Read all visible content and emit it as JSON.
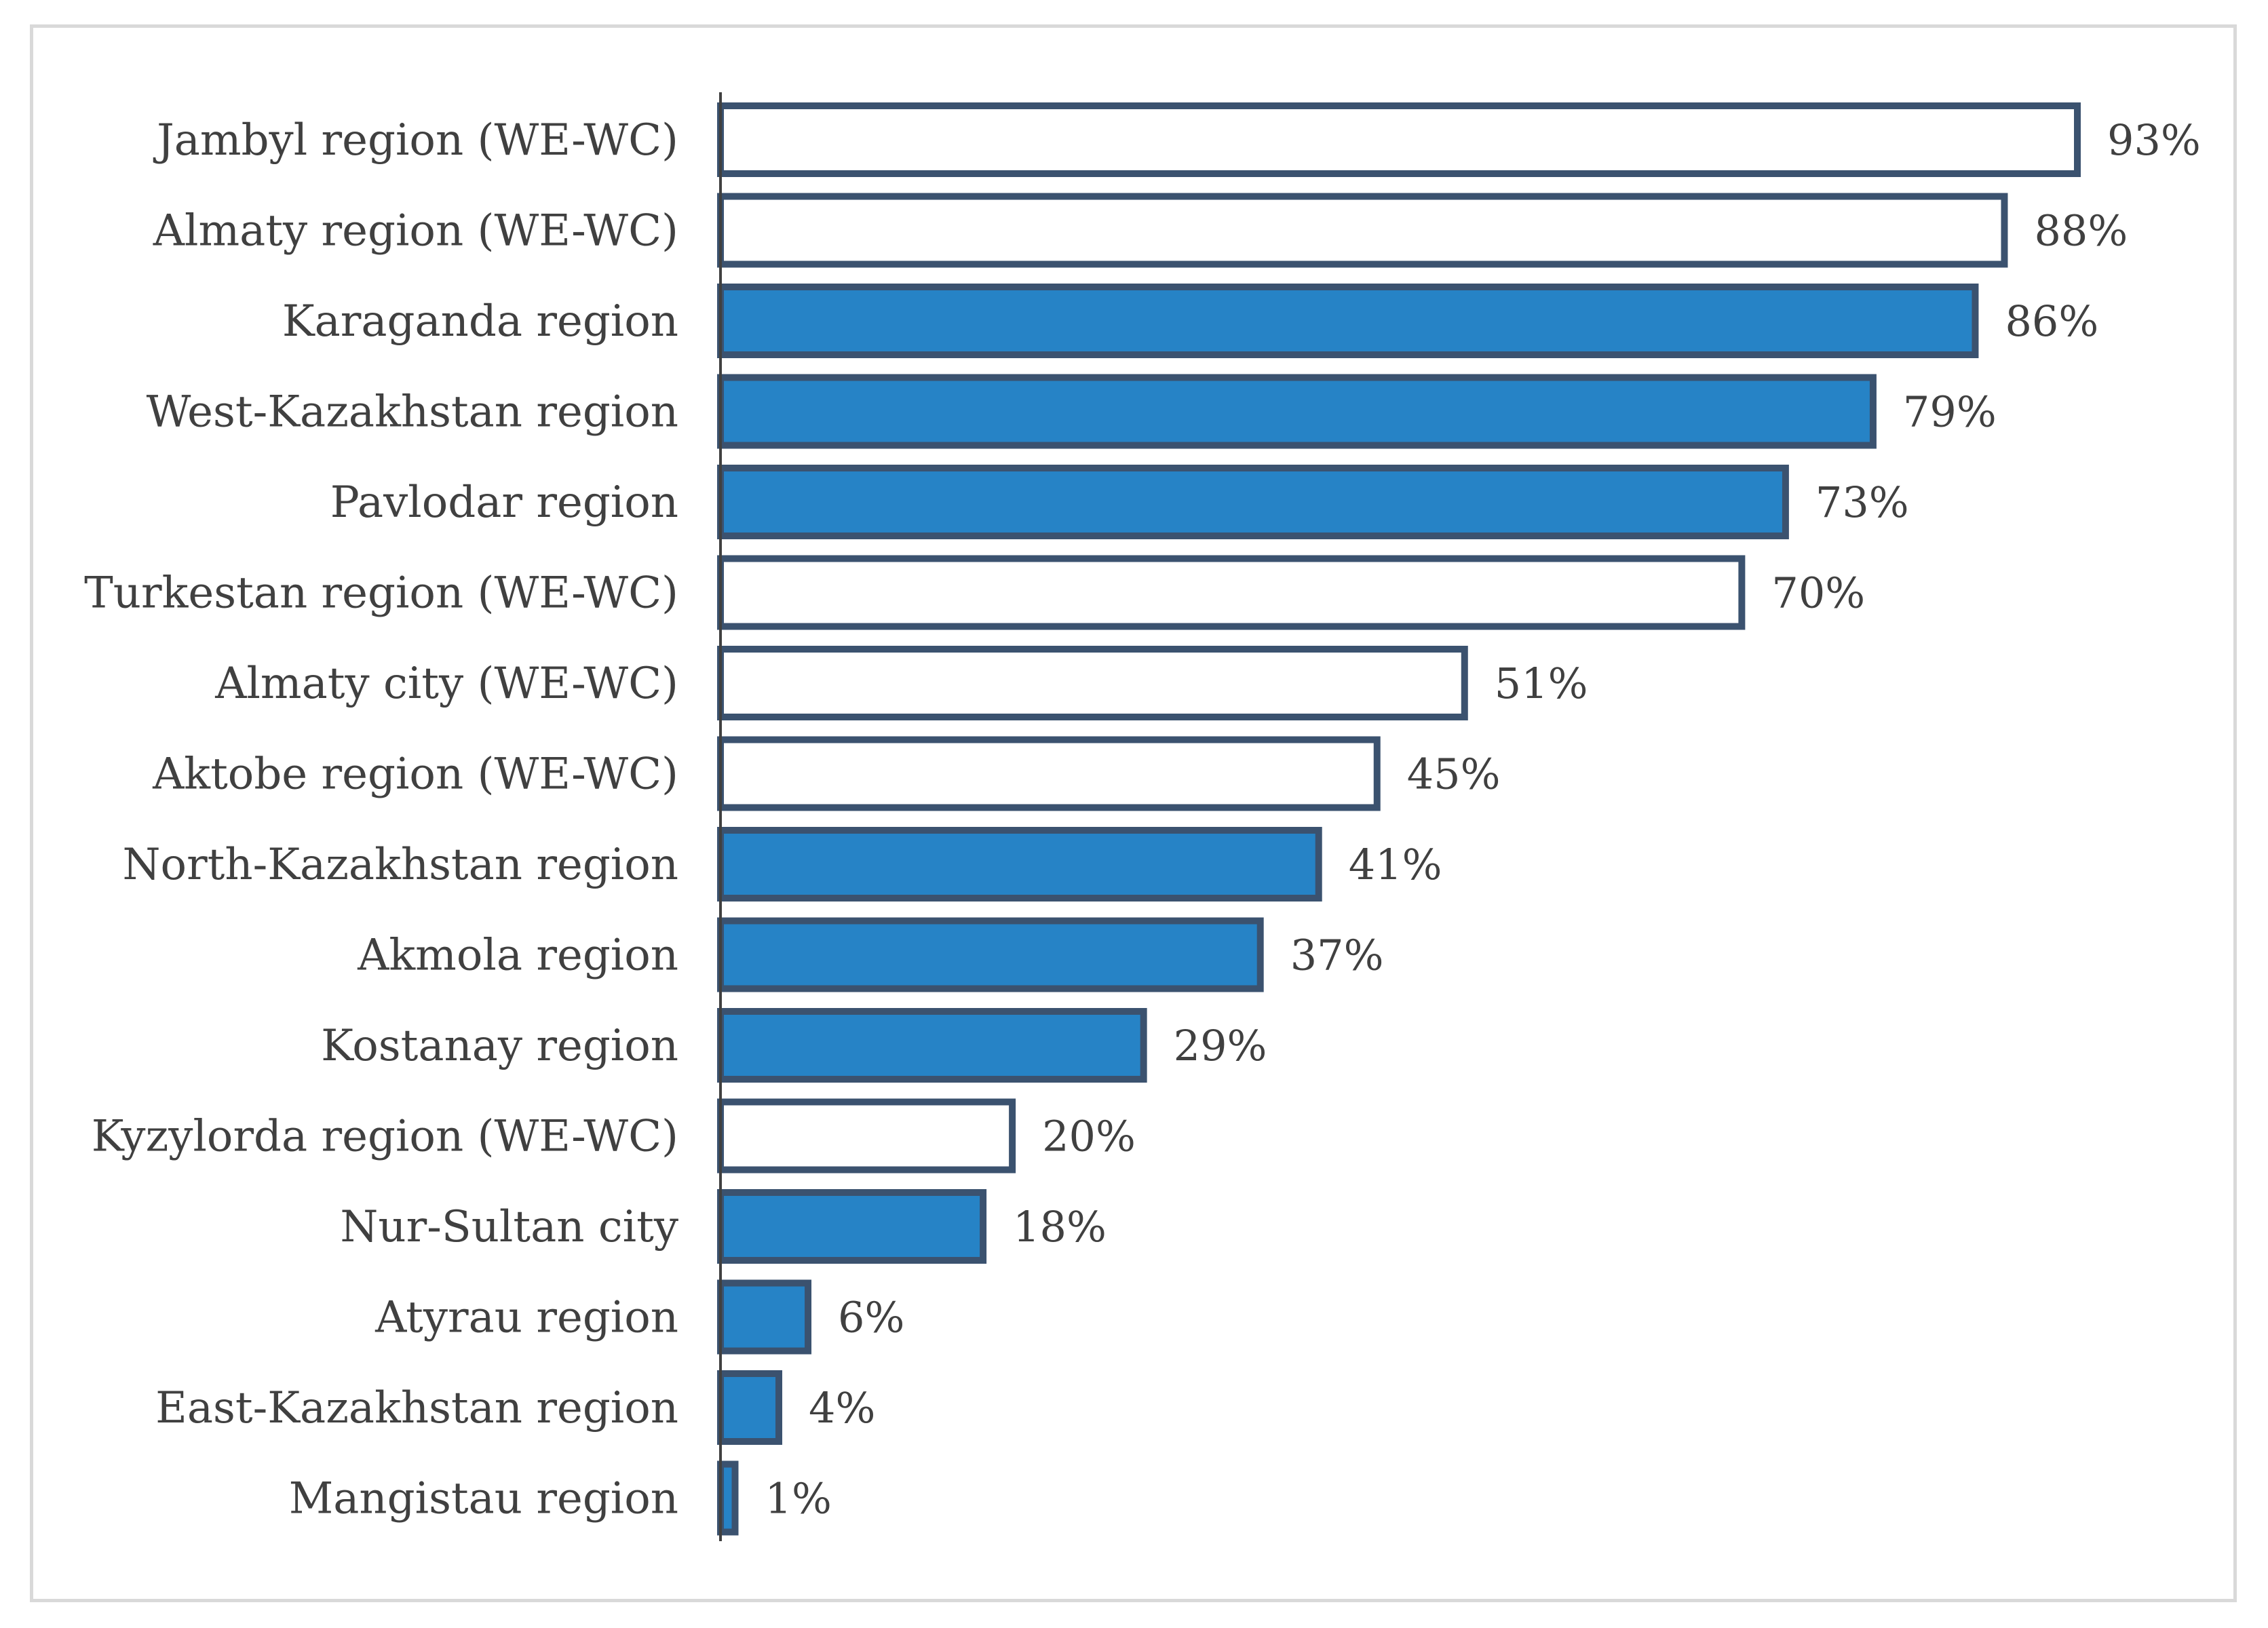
{
  "chart_data": {
    "type": "bar",
    "orientation": "horizontal",
    "title": "",
    "xlabel": "",
    "ylabel": "",
    "xlim": [
      0,
      100
    ],
    "grid": false,
    "legend": "none",
    "value_suffix": "%",
    "categories": [
      "Jambyl region (WE-WC)",
      "Almaty region (WE-WC)",
      "Karaganda region",
      "West-Kazakhstan region",
      "Pavlodar region",
      "Turkestan region (WE-WC)",
      "Almaty city (WE-WC)",
      "Aktobe region (WE-WC)",
      "North-Kazakhstan region",
      "Akmola region",
      "Kostanay region",
      "Kyzylorda region (WE-WC)",
      "Nur-Sultan city",
      "Atyrau region",
      "East-Kazakhstan region",
      "Mangistau region"
    ],
    "values": [
      93,
      88,
      86,
      79,
      73,
      70,
      51,
      45,
      41,
      37,
      29,
      20,
      18,
      6,
      4,
      1
    ],
    "value_labels": [
      "93%",
      "88%",
      "86%",
      "79%",
      "73%",
      "70%",
      "51%",
      "45%",
      "41%",
      "37%",
      "29%",
      "20%",
      "18%",
      "6%",
      "4%",
      "1%"
    ],
    "bar_style": [
      "hollow",
      "hollow",
      "filled",
      "filled",
      "filled",
      "hollow",
      "hollow",
      "hollow",
      "filled",
      "filled",
      "filled",
      "hollow",
      "filled",
      "filled",
      "filled",
      "filled"
    ]
  },
  "colors": {
    "bar_fill": "#2683c6",
    "bar_outline": "#3b526f",
    "hollow_fill": "#ffffff",
    "axis": "#404040",
    "frame": "#d9d9d9",
    "text": "#404040"
  }
}
